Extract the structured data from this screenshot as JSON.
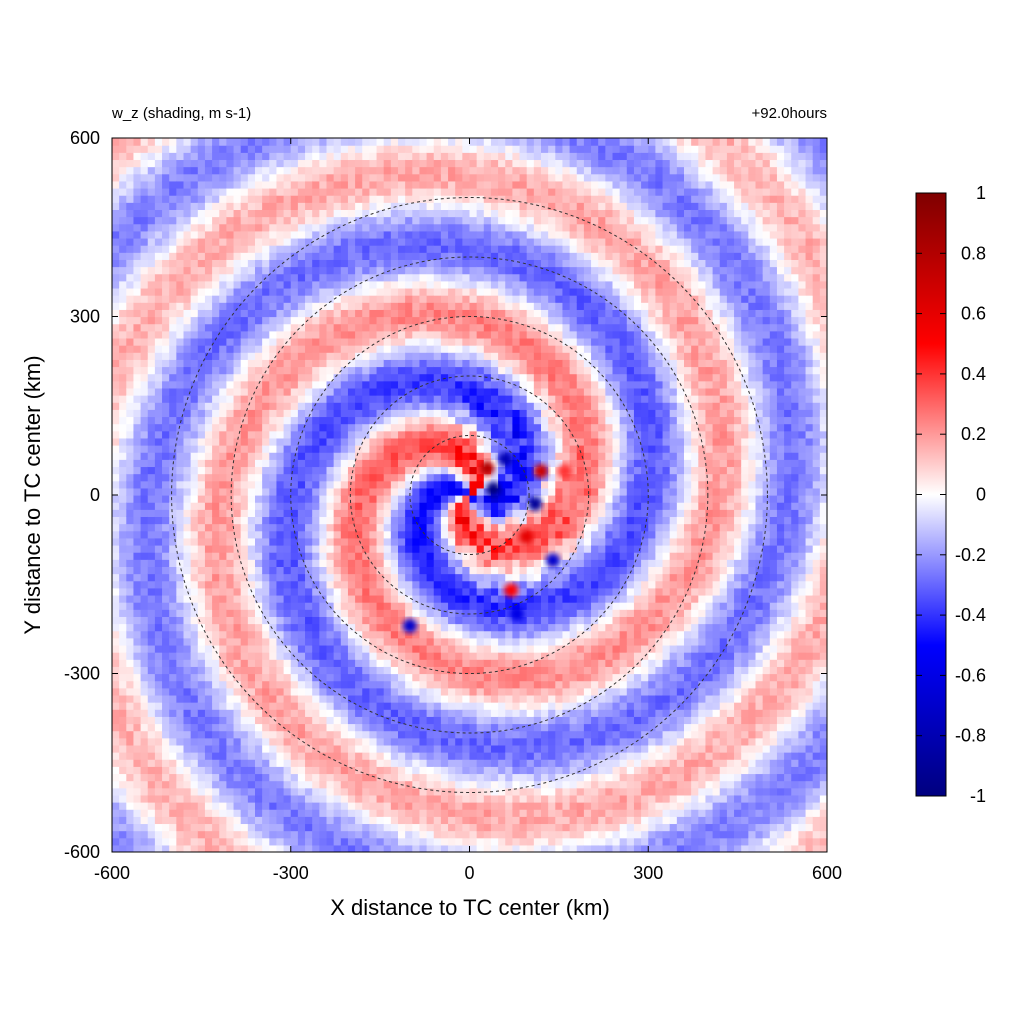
{
  "chart_data": {
    "type": "heatmap",
    "title_left": "w_z (shading, m s-1)",
    "title_right": "+92.0hours",
    "xlabel": "X distance to TC center (km)",
    "ylabel": "Y distance to TC center (km)",
    "xlim": [
      -600,
      600
    ],
    "ylim": [
      -600,
      600
    ],
    "xticks": [
      -600,
      -300,
      0,
      300,
      600
    ],
    "yticks": [
      -600,
      -300,
      0,
      300,
      600
    ],
    "xtick_labels": [
      "-600",
      "-300",
      "0",
      "300",
      "600"
    ],
    "ytick_labels": [
      "-600",
      "-300",
      "0",
      "300",
      "600"
    ],
    "range_rings_km": [
      100,
      200,
      300,
      400,
      500
    ],
    "colorbar": {
      "min": -1,
      "max": 1,
      "ticks": [
        1,
        0.8,
        0.6,
        0.4,
        0.2,
        0,
        -0.2,
        -0.4,
        -0.6,
        -0.8,
        -1
      ],
      "tick_labels": [
        "1",
        "0.8",
        "0.6",
        "0.4",
        "0.2",
        "0",
        "-0.2",
        "-0.4",
        "-0.6",
        "-0.8",
        "-1"
      ],
      "colors": [
        "#00007f",
        "#0000ff",
        "#ffffff",
        "#ff0000",
        "#7f0000"
      ]
    },
    "field_features": [
      {
        "x": 40,
        "y": 10,
        "value": -1.0
      },
      {
        "x": 30,
        "y": 45,
        "value": 0.8
      },
      {
        "x": 60,
        "y": 60,
        "value": -0.8
      },
      {
        "x": 110,
        "y": -15,
        "value": -0.9
      },
      {
        "x": 120,
        "y": 40,
        "value": 0.7
      },
      {
        "x": 95,
        "y": -70,
        "value": 0.6
      },
      {
        "x": 140,
        "y": -110,
        "value": -0.7
      },
      {
        "x": 70,
        "y": -160,
        "value": 0.5
      },
      {
        "x": 80,
        "y": -200,
        "value": -0.6
      },
      {
        "x": -100,
        "y": -220,
        "value": -0.7
      },
      {
        "x": 160,
        "y": 40,
        "value": 0.4
      }
    ]
  }
}
